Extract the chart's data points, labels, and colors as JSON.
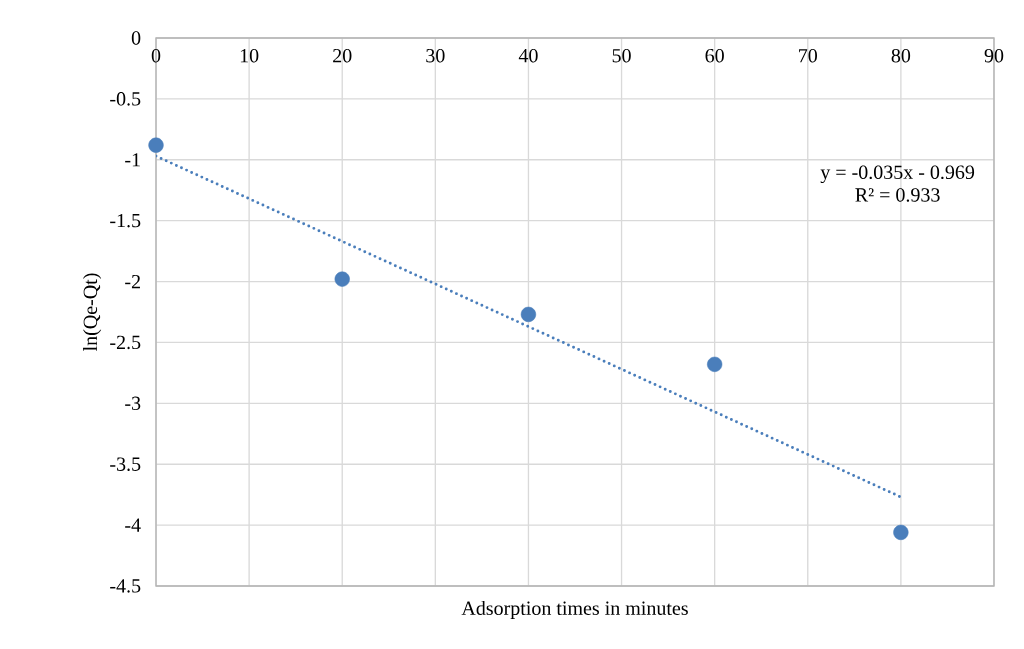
{
  "chart_data": {
    "type": "scatter",
    "xlabel": "Adsorption times in minutes",
    "ylabel": "ln(Qe-Qt)",
    "xlim": [
      0,
      90
    ],
    "ylim": [
      -4.5,
      0
    ],
    "xticks": [
      0,
      10,
      20,
      30,
      40,
      50,
      60,
      70,
      80,
      90
    ],
    "yticks": [
      -4.5,
      -4,
      -3.5,
      -3,
      -2.5,
      -2,
      -1.5,
      -1,
      -0.5,
      0
    ],
    "grid": true,
    "marker": "circle",
    "series": [
      {
        "color": "#4a7ebb",
        "x": [
          0,
          20,
          40,
          60,
          80
        ],
        "values": [
          -0.88,
          -1.98,
          -2.27,
          -2.68,
          -4.06
        ]
      },
      {
        "type": "line",
        "color": "#4a7ebb",
        "line_style": "dotted",
        "marker": "none",
        "x": [
          0,
          80
        ],
        "values": [
          -0.97,
          -3.77
        ]
      }
    ],
    "annotations": [
      "y = -0.035x - 0.969",
      "R² = 0.933"
    ]
  }
}
